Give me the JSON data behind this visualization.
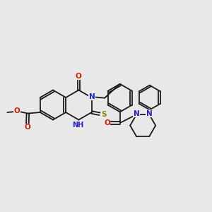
{
  "bg_color": "#e8e8e8",
  "bond_color": "#1a1a1a",
  "n_color": "#2222cc",
  "o_color": "#cc2200",
  "s_color": "#888800",
  "bond_lw": 1.3,
  "font_size": 7.0,
  "fig_w": 3.0,
  "fig_h": 3.0,
  "dpi": 100,
  "xlim": [
    0,
    10
  ],
  "ylim": [
    0,
    10
  ]
}
